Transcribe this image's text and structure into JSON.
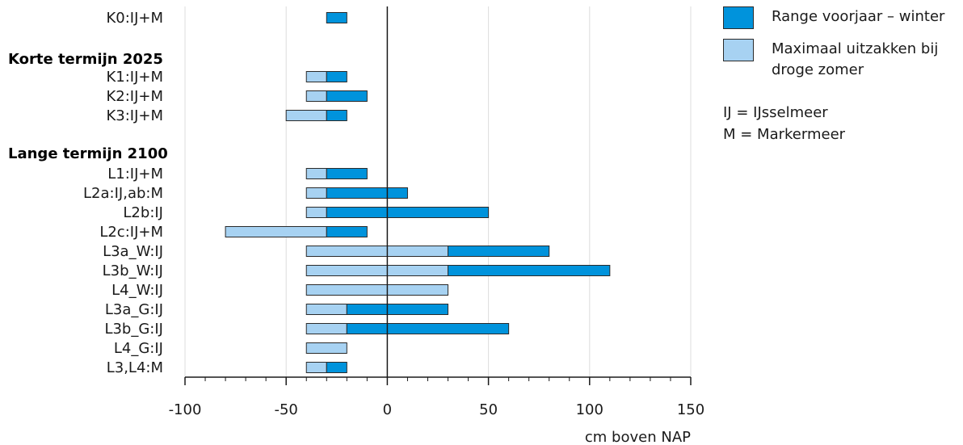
{
  "colors": {
    "range": "#0093dc",
    "summer": "#a7d2f2",
    "axis": "#1a1a1a",
    "grid": "#dcdcdc",
    "outline": "#2a2a2a"
  },
  "legend": {
    "range_label": "Range voorjaar – winter",
    "summer_label": "Maximaal uitzakken bij droge zomer",
    "notes": [
      "IJ = IJsselmeer",
      "M = Markermeer"
    ]
  },
  "chart_data": {
    "type": "bar",
    "orientation": "horizontal",
    "xlabel": "cm boven NAP",
    "xlim": [
      -100,
      150
    ],
    "xticks": [
      -100,
      -50,
      0,
      50,
      100,
      150
    ],
    "grid": true,
    "legend_position": "top-right",
    "groups": [
      "Korte termijn 2025",
      "Lange termijn 2100"
    ],
    "rows": [
      {
        "label": "K0:IJ+M",
        "summer_min": null,
        "range_min": -30,
        "range_max": -20
      },
      {
        "label": "K1:IJ+M",
        "summer_min": -40,
        "range_min": -30,
        "range_max": -20
      },
      {
        "label": "K2:IJ+M",
        "summer_min": -40,
        "range_min": -30,
        "range_max": -10
      },
      {
        "label": "K3:IJ+M",
        "summer_min": -50,
        "range_min": -30,
        "range_max": -20
      },
      {
        "label": "L1:IJ+M",
        "summer_min": -40,
        "range_min": -30,
        "range_max": -10
      },
      {
        "label": "L2a:IJ,ab:M",
        "summer_min": -40,
        "range_min": -30,
        "range_max": 10
      },
      {
        "label": "L2b:IJ",
        "summer_min": -40,
        "range_min": -30,
        "range_max": 50
      },
      {
        "label": "L2c:IJ+M",
        "summer_min": -80,
        "range_min": -30,
        "range_max": -10
      },
      {
        "label": "L3a_W:IJ",
        "summer_min": -40,
        "range_min": 30,
        "range_max": 80
      },
      {
        "label": "L3b_W:IJ",
        "summer_min": -40,
        "range_min": 30,
        "range_max": 110
      },
      {
        "label": "L4_W:IJ",
        "summer_min": -40,
        "range_min": 30,
        "range_max": null
      },
      {
        "label": "L3a_G:IJ",
        "summer_min": -40,
        "range_min": -20,
        "range_max": 30
      },
      {
        "label": "L3b_G:IJ",
        "summer_min": -40,
        "range_min": -20,
        "range_max": 60
      },
      {
        "label": "L4_G:IJ",
        "summer_min": -40,
        "range_min": -20,
        "range_max": null
      },
      {
        "label": "L3,L4:M",
        "summer_min": -40,
        "range_min": -30,
        "range_max": -20
      }
    ]
  }
}
